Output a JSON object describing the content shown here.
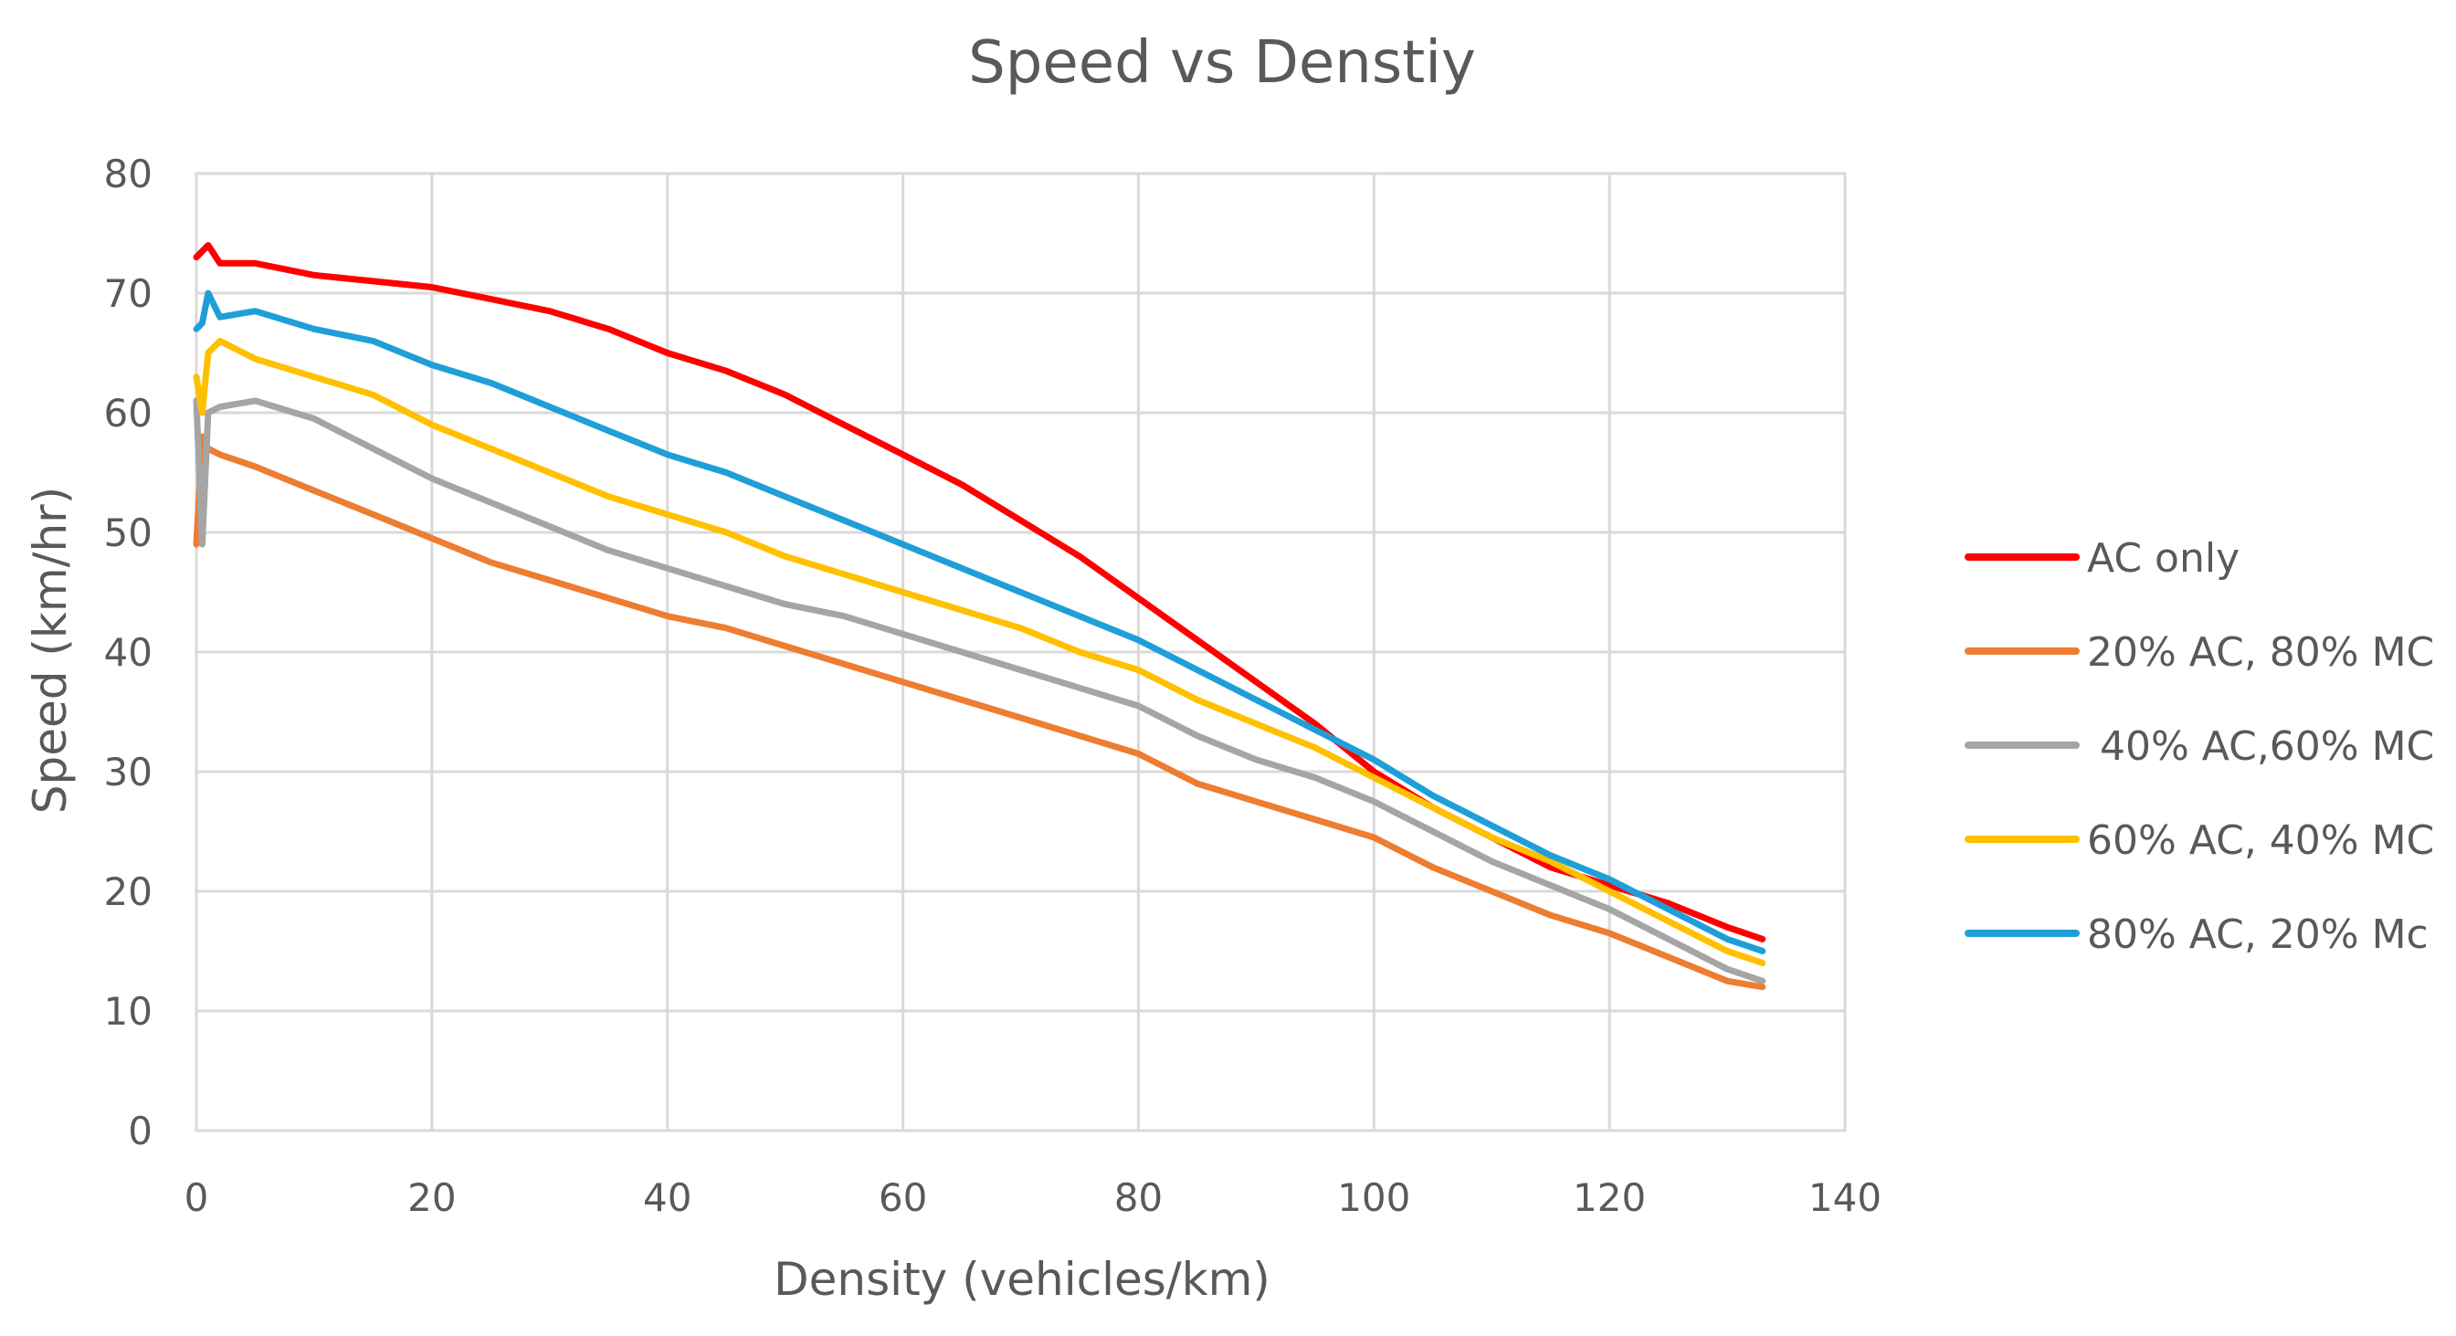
{
  "chart_data": {
    "type": "line",
    "title": "Speed vs Denstiy",
    "xlabel": "Density (vehicles/km)",
    "ylabel": "Speed (km/hr)",
    "xlim": [
      0,
      140
    ],
    "ylim": [
      0,
      80
    ],
    "xticks": [
      0,
      20,
      40,
      60,
      80,
      100,
      120,
      140
    ],
    "yticks": [
      0,
      10,
      20,
      30,
      40,
      50,
      60,
      70,
      80
    ],
    "grid": true,
    "legend_position": "right",
    "series": [
      {
        "name": "AC only",
        "color": "#ff0000",
        "x": [
          0,
          1,
          2,
          5,
          10,
          15,
          20,
          25,
          30,
          35,
          40,
          45,
          50,
          55,
          60,
          65,
          70,
          75,
          80,
          85,
          90,
          95,
          100,
          105,
          110,
          115,
          120,
          125,
          130,
          133
        ],
        "y": [
          73,
          74,
          72.5,
          72.5,
          71.5,
          71,
          70.5,
          69.5,
          68.5,
          67,
          65,
          63.5,
          61.5,
          59,
          56.5,
          54,
          51,
          48,
          44.5,
          41,
          37.5,
          34,
          30,
          27,
          24.5,
          22,
          20.5,
          19,
          17,
          16
        ]
      },
      {
        "name": "20% AC, 80% MC",
        "color": "#ed7d31",
        "x": [
          0,
          0.5,
          1,
          2,
          5,
          10,
          15,
          20,
          25,
          30,
          35,
          40,
          45,
          50,
          55,
          60,
          65,
          70,
          75,
          80,
          85,
          90,
          95,
          100,
          105,
          110,
          115,
          120,
          125,
          130,
          133
        ],
        "y": [
          49,
          58,
          57,
          56.5,
          55.5,
          53.5,
          51.5,
          49.5,
          47.5,
          46,
          44.5,
          43,
          42,
          40.5,
          39,
          37.5,
          36,
          34.5,
          33,
          31.5,
          29,
          27.5,
          26,
          24.5,
          22,
          20,
          18,
          16.5,
          14.5,
          12.5,
          12
        ]
      },
      {
        "name": " 40% AC,60% MC",
        "color": "#a5a5a5",
        "x": [
          0,
          0.5,
          1,
          2,
          5,
          10,
          15,
          20,
          25,
          30,
          35,
          40,
          45,
          50,
          55,
          60,
          65,
          70,
          75,
          80,
          85,
          90,
          95,
          100,
          105,
          110,
          115,
          120,
          125,
          130,
          133
        ],
        "y": [
          61,
          49,
          60,
          60.5,
          61,
          59.5,
          57,
          54.5,
          52.5,
          50.5,
          48.5,
          47,
          45.5,
          44,
          43,
          41.5,
          40,
          38.5,
          37,
          35.5,
          33,
          31,
          29.5,
          27.5,
          25,
          22.5,
          20.5,
          18.5,
          16,
          13.5,
          12.5
        ]
      },
      {
        "name": "60% AC, 40% MC",
        "color": "#ffc000",
        "x": [
          0,
          0.5,
          1,
          2,
          5,
          10,
          15,
          20,
          25,
          30,
          35,
          40,
          45,
          50,
          55,
          60,
          65,
          70,
          75,
          80,
          85,
          90,
          95,
          100,
          105,
          110,
          115,
          120,
          125,
          130,
          133
        ],
        "y": [
          63,
          60,
          65,
          66,
          64.5,
          63,
          61.5,
          59,
          57,
          55,
          53,
          51.5,
          50,
          48,
          46.5,
          45,
          43.5,
          42,
          40,
          38.5,
          36,
          34,
          32,
          29.5,
          27,
          24.5,
          22.5,
          20,
          17.5,
          15,
          14
        ]
      },
      {
        "name": "80% AC, 20% Mc",
        "color": "#1f9fd8",
        "x": [
          0,
          0.5,
          1,
          2,
          5,
          10,
          15,
          20,
          25,
          30,
          35,
          40,
          45,
          50,
          55,
          60,
          65,
          70,
          75,
          80,
          85,
          90,
          95,
          100,
          105,
          110,
          115,
          120,
          125,
          130,
          133
        ],
        "y": [
          67,
          67.5,
          70,
          68,
          68.5,
          67,
          66,
          64,
          62.5,
          60.5,
          58.5,
          56.5,
          55,
          53,
          51,
          49,
          47,
          45,
          43,
          41,
          38.5,
          36,
          33.5,
          31,
          28,
          25.5,
          23,
          21,
          18.5,
          16,
          15
        ]
      }
    ]
  }
}
